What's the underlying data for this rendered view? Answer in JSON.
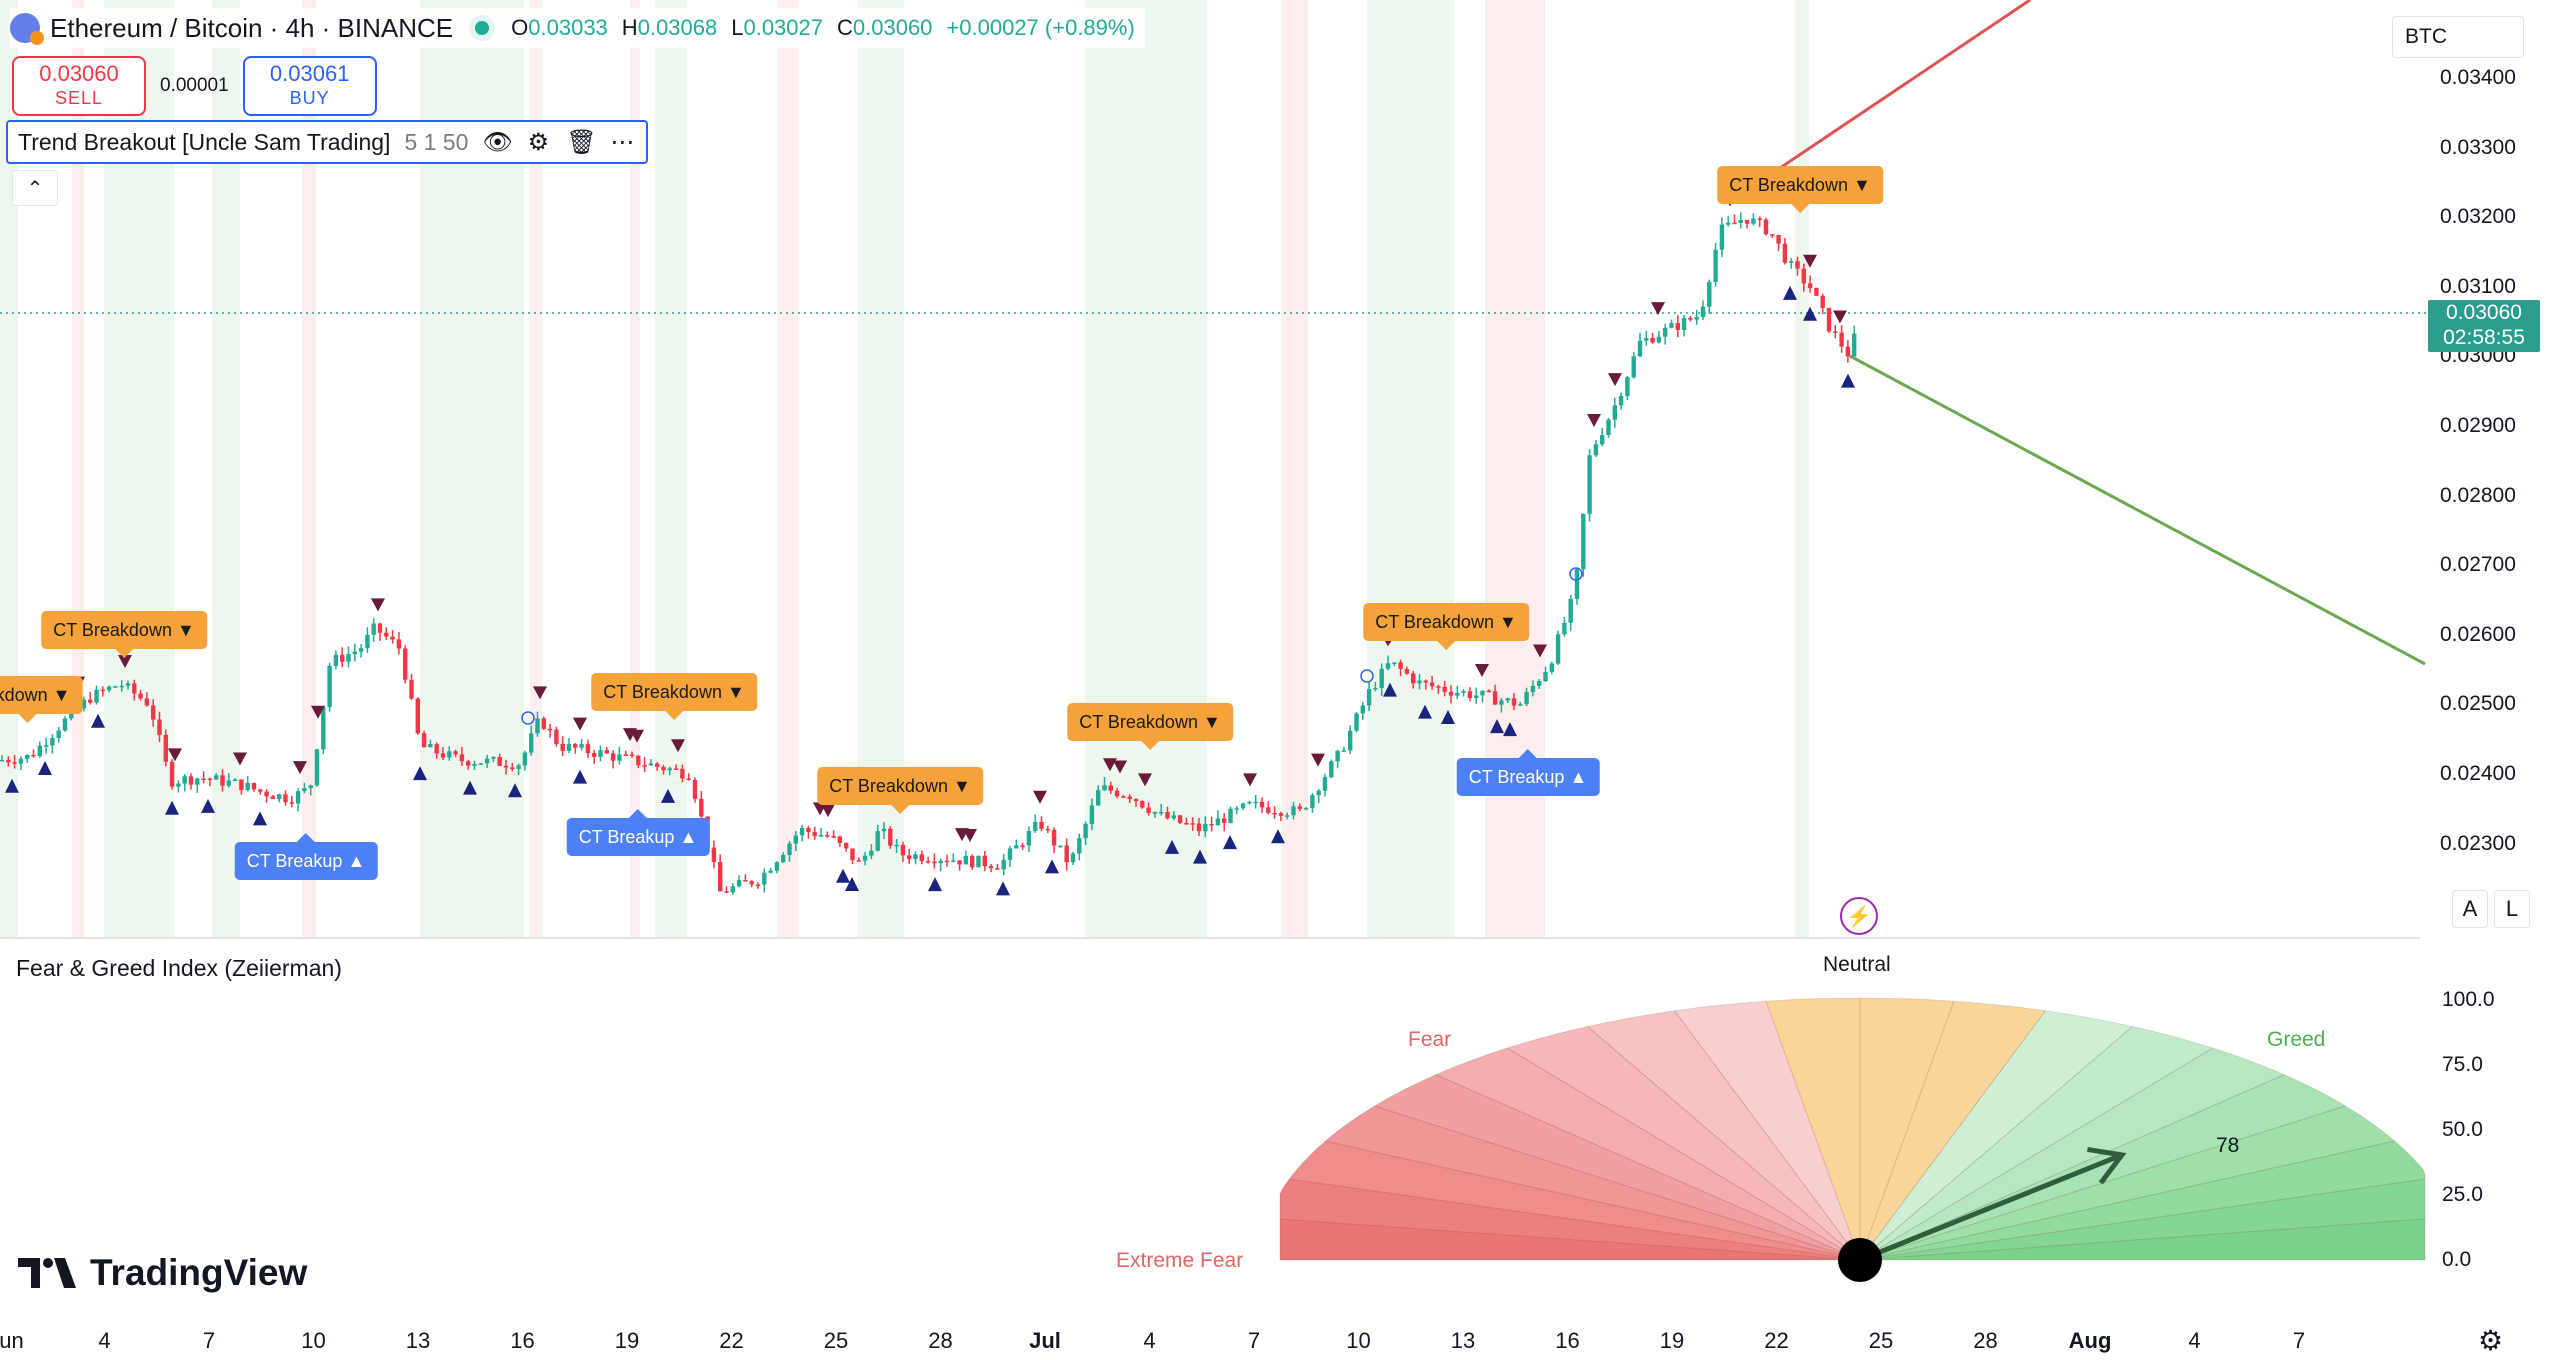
{
  "header": {
    "symbol": "Ethereum / Bitcoin · 4h · BINANCE",
    "ohlc": [
      {
        "k": "O",
        "v": "0.03033"
      },
      {
        "k": "H",
        "v": "0.03068"
      },
      {
        "k": "L",
        "v": "0.03027"
      },
      {
        "k": "C",
        "v": "0.03060"
      },
      {
        "k": "",
        "v": "+0.00027 (+0.89%)"
      }
    ]
  },
  "trade": {
    "sell_price": "0.03060",
    "sell_label": "SELL",
    "spread": "0.00001",
    "buy_price": "0.03061",
    "buy_label": "BUY"
  },
  "indicator": {
    "name": "Trend Breakout [Uncle Sam Trading]",
    "params": "5 1 50",
    "icons": [
      "eye-icon",
      "settings-icon",
      "trash-icon",
      "more-icon"
    ]
  },
  "currency": "BTC",
  "price_axis": [
    "0.03400",
    "0.03300",
    "0.03200",
    "0.03100",
    "0.03000",
    "0.02900",
    "0.02800",
    "0.02700",
    "0.02600",
    "0.02500",
    "0.02400",
    "0.02300"
  ],
  "last_price": {
    "value": "0.03060",
    "countdown": "02:58:55"
  },
  "labels": [
    {
      "text": "CT Breakdown ▼",
      "kind": "down"
    },
    {
      "text": "akdown ▼",
      "kind": "down"
    },
    {
      "text": "CT Breakup ▲",
      "kind": "up"
    },
    {
      "text": "CT Breakdown ▼",
      "kind": "down"
    },
    {
      "text": "CT Breakup ▲",
      "kind": "up"
    },
    {
      "text": "CT Breakdown ▼",
      "kind": "down"
    },
    {
      "text": "CT Breakdown ▼",
      "kind": "down"
    },
    {
      "text": "CT Breakdown ▼",
      "kind": "down"
    },
    {
      "text": "CT Breakup ▲",
      "kind": "up"
    },
    {
      "text": "CT Breakdown ▼",
      "kind": "down"
    }
  ],
  "fear_greed": {
    "title": "Fear & Greed Index (Zeiierman)",
    "neutral": "Neutral",
    "fear": "Fear",
    "greed": "Greed",
    "extreme_fear": "Extreme Fear",
    "value": 78,
    "value_text": "78",
    "axis": [
      "100.0",
      "75.0",
      "50.0",
      "25.0",
      "0.0"
    ]
  },
  "time_axis": [
    {
      "t": "Jun",
      "bold": false
    },
    {
      "t": "4",
      "bold": false
    },
    {
      "t": "7",
      "bold": false
    },
    {
      "t": "10",
      "bold": false
    },
    {
      "t": "13",
      "bold": false
    },
    {
      "t": "16",
      "bold": false
    },
    {
      "t": "19",
      "bold": false
    },
    {
      "t": "22",
      "bold": false
    },
    {
      "t": "25",
      "bold": false
    },
    {
      "t": "28",
      "bold": false
    },
    {
      "t": "Jul",
      "bold": true
    },
    {
      "t": "4",
      "bold": false
    },
    {
      "t": "7",
      "bold": false
    },
    {
      "t": "10",
      "bold": false
    },
    {
      "t": "13",
      "bold": false
    },
    {
      "t": "16",
      "bold": false
    },
    {
      "t": "19",
      "bold": false
    },
    {
      "t": "22",
      "bold": false
    },
    {
      "t": "25",
      "bold": false
    },
    {
      "t": "28",
      "bold": false
    },
    {
      "t": "Aug",
      "bold": true
    },
    {
      "t": "4",
      "bold": false
    },
    {
      "t": "7",
      "bold": false
    }
  ],
  "scale_buttons": [
    "A",
    "L"
  ],
  "branding": "TradingView",
  "colors": {
    "up": "#22ab94",
    "down": "#f23645",
    "accent": "#2962ff",
    "label_down": "#f5a23b",
    "label_up": "#4d7ff5"
  },
  "chart_data": {
    "type": "candlestick",
    "title": "Ethereum / Bitcoin · 4h · BINANCE",
    "ylim": [
      0.0222,
      0.0348
    ],
    "close_path": [
      [
        0,
        0.0242
      ],
      [
        30,
        0.02425
      ],
      [
        60,
        0.0247
      ],
      [
        90,
        0.0251
      ],
      [
        120,
        0.0253
      ],
      [
        150,
        0.025
      ],
      [
        170,
        0.0239
      ],
      [
        200,
        0.02395
      ],
      [
        240,
        0.02385
      ],
      [
        260,
        0.02375
      ],
      [
        290,
        0.02365
      ],
      [
        310,
        0.0238
      ],
      [
        330,
        0.0256
      ],
      [
        360,
        0.0258
      ],
      [
        375,
        0.0261
      ],
      [
        400,
        0.0258
      ],
      [
        420,
        0.0244
      ],
      [
        460,
        0.0242
      ],
      [
        520,
        0.02415
      ],
      [
        540,
        0.0248
      ],
      [
        560,
        0.0244
      ],
      [
        600,
        0.0243
      ],
      [
        660,
        0.0241
      ],
      [
        690,
        0.024
      ],
      [
        720,
        0.0223
      ],
      [
        760,
        0.0225
      ],
      [
        800,
        0.0232
      ],
      [
        830,
        0.0231
      ],
      [
        860,
        0.0227
      ],
      [
        880,
        0.0232
      ],
      [
        900,
        0.02285
      ],
      [
        940,
        0.0228
      ],
      [
        1000,
        0.0227
      ],
      [
        1040,
        0.0233
      ],
      [
        1070,
        0.0227
      ],
      [
        1100,
        0.0238
      ],
      [
        1130,
        0.0237
      ],
      [
        1160,
        0.0234
      ],
      [
        1200,
        0.0232
      ],
      [
        1250,
        0.02355
      ],
      [
        1300,
        0.02345
      ],
      [
        1340,
        0.0243
      ],
      [
        1370,
        0.0252
      ],
      [
        1390,
        0.0256
      ],
      [
        1420,
        0.0253
      ],
      [
        1450,
        0.0252
      ],
      [
        1490,
        0.0251
      ],
      [
        1520,
        0.025
      ],
      [
        1550,
        0.0256
      ],
      [
        1575,
        0.0266
      ],
      [
        1590,
        0.0286
      ],
      [
        1615,
        0.0293
      ],
      [
        1640,
        0.0302
      ],
      [
        1670,
        0.0304
      ],
      [
        1700,
        0.0306
      ],
      [
        1720,
        0.0318
      ],
      [
        1745,
        0.032
      ],
      [
        1770,
        0.0318
      ],
      [
        1790,
        0.0313
      ],
      [
        1810,
        0.031
      ],
      [
        1830,
        0.0304
      ],
      [
        1850,
        0.03
      ],
      [
        1860,
        0.0306
      ]
    ]
  }
}
